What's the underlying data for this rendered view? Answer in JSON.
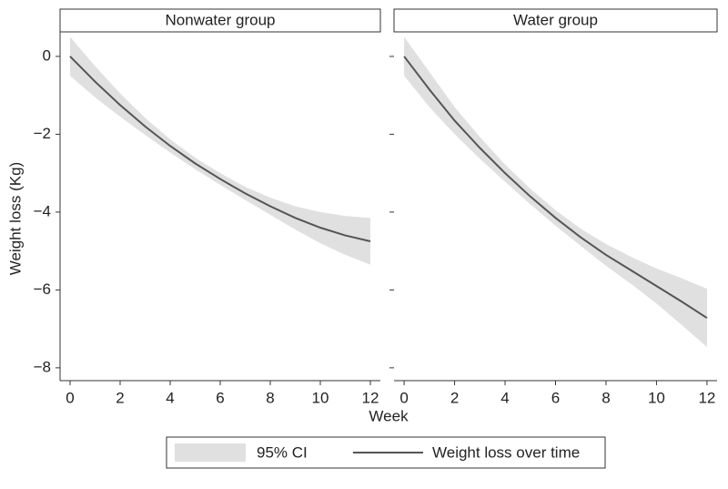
{
  "chart_data": [
    {
      "type": "line",
      "title": "Nonwater group",
      "xlabel": "Week",
      "ylabel": "Weight loss (Kg)",
      "x": [
        0,
        1,
        2,
        3,
        4,
        5,
        6,
        7,
        8,
        9,
        10,
        11,
        12
      ],
      "xlim": [
        -0.4,
        12.4
      ],
      "xticks": [
        0,
        2,
        4,
        6,
        8,
        10,
        12
      ],
      "ylim": [
        -8.33,
        0.63
      ],
      "yticks": [
        0,
        {
          "value": -2,
          "label": "−2"
        },
        {
          "value": -4,
          "label": "−4"
        },
        {
          "value": -6,
          "label": "−6"
        },
        {
          "value": -8,
          "label": "−8"
        }
      ],
      "band": {
        "name": "95% CI",
        "color": "#e0e0e0",
        "upper": [
          0.5,
          -0.25,
          -0.95,
          -1.58,
          -2.13,
          -2.6,
          -3.0,
          -3.35,
          -3.63,
          -3.85,
          -4.0,
          -4.1,
          -4.15
        ],
        "lower": [
          -0.5,
          -1.05,
          -1.55,
          -2.02,
          -2.47,
          -2.9,
          -3.3,
          -3.69,
          -4.07,
          -4.45,
          -4.8,
          -5.1,
          -5.35
        ]
      },
      "series": [
        {
          "name": "Weight loss over time",
          "color": "#555555",
          "values": [
            0,
            -0.65,
            -1.25,
            -1.8,
            -2.3,
            -2.75,
            -3.15,
            -3.52,
            -3.85,
            -4.15,
            -4.4,
            -4.6,
            -4.75
          ]
        }
      ]
    },
    {
      "type": "line",
      "title": "Water group",
      "x": [
        0,
        1,
        2,
        3,
        4,
        5,
        6,
        7,
        8,
        9,
        10,
        11,
        12
      ],
      "xlim": [
        -0.4,
        12.4
      ],
      "xticks": [
        0,
        2,
        4,
        6,
        8,
        10,
        12
      ],
      "ylim": [
        -8.33,
        0.63
      ],
      "band": {
        "color": "#e0e0e0",
        "upper": [
          0.5,
          -0.4,
          -1.3,
          -2.07,
          -2.78,
          -3.4,
          -3.95,
          -4.43,
          -4.82,
          -5.15,
          -5.45,
          -5.7,
          -5.97
        ],
        "lower": [
          -0.5,
          -1.3,
          -2.0,
          -2.63,
          -3.22,
          -3.8,
          -4.35,
          -4.87,
          -5.38,
          -5.85,
          -6.35,
          -6.9,
          -7.47
        ]
      },
      "series": [
        {
          "color": "#555555",
          "values": [
            0,
            -0.85,
            -1.65,
            -2.35,
            -3.0,
            -3.6,
            -4.15,
            -4.65,
            -5.1,
            -5.5,
            -5.9,
            -6.3,
            -6.72
          ]
        }
      ]
    }
  ]
}
